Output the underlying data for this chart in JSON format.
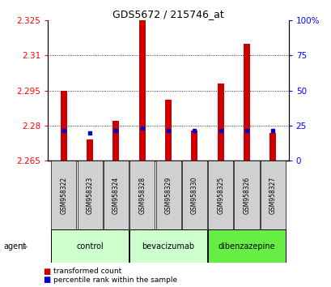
{
  "title": "GDS5672 / 215746_at",
  "samples": [
    "GSM958322",
    "GSM958323",
    "GSM958324",
    "GSM958328",
    "GSM958329",
    "GSM958330",
    "GSM958325",
    "GSM958326",
    "GSM958327"
  ],
  "groups_info": [
    {
      "label": "control",
      "start": 0,
      "end": 2,
      "color": "#ccffcc"
    },
    {
      "label": "bevacizumab",
      "start": 3,
      "end": 5,
      "color": "#ccffcc"
    },
    {
      "label": "dibenzazepine",
      "start": 6,
      "end": 8,
      "color": "#66ee44"
    }
  ],
  "red_values": [
    2.295,
    2.274,
    2.282,
    2.326,
    2.291,
    2.278,
    2.298,
    2.315,
    2.277
  ],
  "blue_values": [
    2.278,
    2.277,
    2.278,
    2.279,
    2.278,
    2.278,
    2.278,
    2.278,
    2.278
  ],
  "y_min": 2.265,
  "y_max": 2.325,
  "y_ticks": [
    2.265,
    2.28,
    2.295,
    2.31,
    2.325
  ],
  "y_tick_labels": [
    "2.265",
    "2.28",
    "2.295",
    "2.31",
    "2.325"
  ],
  "y_right_pct": [
    0,
    25,
    50,
    75,
    100
  ],
  "y_right_labels": [
    "0",
    "25",
    "50",
    "75",
    "100%"
  ],
  "bar_color": "#cc0000",
  "blue_color": "#0000cc",
  "legend_items": [
    {
      "label": "transformed count",
      "color": "#cc0000"
    },
    {
      "label": "percentile rank within the sample",
      "color": "#0000cc"
    }
  ],
  "agent_label": "agent"
}
